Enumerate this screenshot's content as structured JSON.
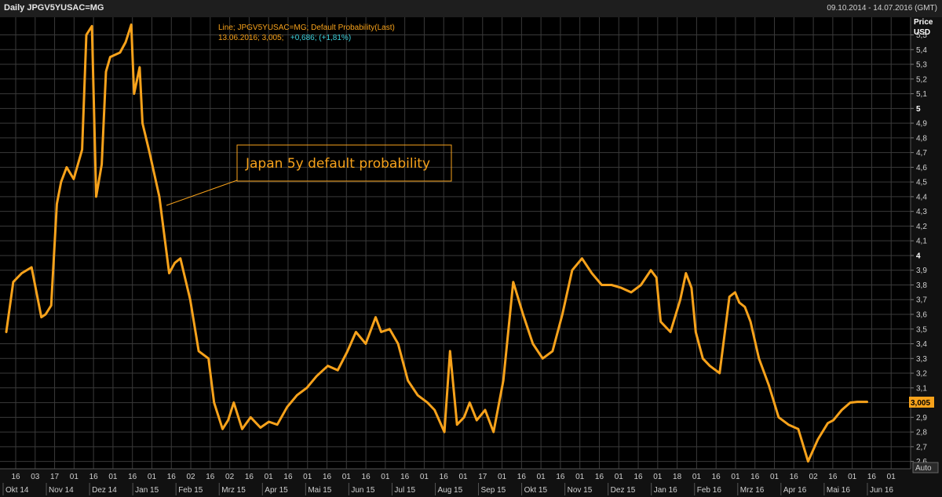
{
  "header": {
    "title": "Daily JPGV5YUSAC=MG",
    "date_range": "09.10.2014 - 14.07.2016 (GMT)"
  },
  "legend": {
    "line1": "Line; JPGV5YUSAC=MG; Default Probability(Last)",
    "line2_date_value": "13.06.2016; 3,005;",
    "line2_change": "+0,686; (+1,81%)"
  },
  "axis": {
    "y_title": "Price",
    "y_unit": "USD",
    "y_ticks": [
      "2,6",
      "2,7",
      "2,8",
      "2,9",
      "3",
      "3,1",
      "3,2",
      "3,3",
      "3,4",
      "3,5",
      "3,6",
      "3,7",
      "3,8",
      "3,9",
      "4",
      "4,1",
      "4,2",
      "4,3",
      "4,4",
      "4,5",
      "4,6",
      "4,7",
      "4,8",
      "4,9",
      "5",
      "5,1",
      "5,2",
      "5,3",
      "5,4",
      "5,5"
    ],
    "bold_ticks": [
      "3",
      "4",
      "5"
    ],
    "auto_label": "Auto",
    "x_day_ticks": [
      "16",
      "03",
      "17",
      "01",
      "16",
      "01",
      "16",
      "01",
      "16",
      "02",
      "16",
      "02",
      "16",
      "01",
      "16",
      "01",
      "16",
      "01",
      "16",
      "01",
      "16",
      "01",
      "16",
      "01",
      "17",
      "01",
      "16",
      "01",
      "16",
      "01",
      "16",
      "01",
      "16",
      "01",
      "18",
      "01",
      "16",
      "01",
      "16",
      "01",
      "16",
      "02",
      "16",
      "01",
      "16",
      "01"
    ],
    "months": [
      "Okt 14",
      "Nov 14",
      "Dez 14",
      "Jan 15",
      "Feb 15",
      "Mrz 15",
      "Apr 15",
      "Mai 15",
      "Jun 15",
      "Jul 15",
      "Aug 15",
      "Sep 15",
      "Okt 15",
      "Nov 15",
      "Dez 15",
      "Jan 16",
      "Feb 16",
      "Mrz 16",
      "Apr 16",
      "Mai 16",
      "Jun 16"
    ]
  },
  "annotation": {
    "text": "Japan 5y default probability"
  },
  "last_value_label": "3,005",
  "colors": {
    "line": "#f7a21b",
    "grid": "#3a3a3a",
    "background": "#000000",
    "change": "#3fd4e0"
  },
  "chart_data": {
    "type": "line",
    "title": "Daily JPGV5YUSAC=MG",
    "xlabel": "",
    "ylabel": "Price USD",
    "ylim": [
      2.55,
      5.62
    ],
    "grid": true,
    "x_range": [
      "09.10.2014",
      "14.07.2016"
    ],
    "series": [
      {
        "name": "Default Probability(Last)",
        "x": [
          "2014-10-09",
          "2014-10-14",
          "2014-10-20",
          "2014-10-27",
          "2014-11-03",
          "2014-11-06",
          "2014-11-10",
          "2014-11-14",
          "2014-11-17",
          "2014-11-21",
          "2014-11-26",
          "2014-12-02",
          "2014-12-05",
          "2014-12-09",
          "2014-12-12",
          "2014-12-16",
          "2014-12-19",
          "2014-12-22",
          "2014-12-29",
          "2015-01-02",
          "2015-01-06",
          "2015-01-08",
          "2015-01-12",
          "2015-01-14",
          "2015-01-19",
          "2015-01-26",
          "2015-02-02",
          "2015-02-06",
          "2015-02-10",
          "2015-02-17",
          "2015-02-23",
          "2015-03-02",
          "2015-03-06",
          "2015-03-12",
          "2015-03-16",
          "2015-03-20",
          "2015-03-26",
          "2015-04-01",
          "2015-04-08",
          "2015-04-14",
          "2015-04-20",
          "2015-04-27",
          "2015-05-04",
          "2015-05-11",
          "2015-05-18",
          "2015-05-26",
          "2015-06-02",
          "2015-06-09",
          "2015-06-15",
          "2015-06-22",
          "2015-06-29",
          "2015-07-03",
          "2015-07-09",
          "2015-07-15",
          "2015-07-22",
          "2015-07-29",
          "2015-08-05",
          "2015-08-10",
          "2015-08-17",
          "2015-08-21",
          "2015-08-26",
          "2015-08-31",
          "2015-09-04",
          "2015-09-09",
          "2015-09-15",
          "2015-09-21",
          "2015-09-28",
          "2015-10-05",
          "2015-10-12",
          "2015-10-19",
          "2015-10-26",
          "2015-11-02",
          "2015-11-09",
          "2015-11-16",
          "2015-11-23",
          "2015-11-30",
          "2015-12-07",
          "2015-12-14",
          "2015-12-21",
          "2015-12-28",
          "2016-01-04",
          "2016-01-11",
          "2016-01-15",
          "2016-01-18",
          "2016-01-25",
          "2016-02-01",
          "2016-02-05",
          "2016-02-09",
          "2016-02-12",
          "2016-02-17",
          "2016-02-22",
          "2016-02-29",
          "2016-03-07",
          "2016-03-11",
          "2016-03-14",
          "2016-03-18",
          "2016-03-22",
          "2016-03-28",
          "2016-04-04",
          "2016-04-11",
          "2016-04-18",
          "2016-04-25",
          "2016-05-02",
          "2016-05-09",
          "2016-05-16",
          "2016-05-20",
          "2016-05-26",
          "2016-06-01",
          "2016-06-06",
          "2016-06-10",
          "2016-06-13"
        ],
        "values": [
          3.48,
          3.82,
          3.88,
          3.92,
          3.58,
          3.6,
          3.66,
          4.35,
          4.5,
          4.6,
          4.52,
          4.72,
          5.5,
          5.56,
          4.4,
          4.62,
          5.25,
          5.35,
          5.38,
          5.45,
          5.57,
          5.1,
          5.28,
          4.9,
          4.7,
          4.4,
          3.88,
          3.95,
          3.98,
          3.7,
          3.35,
          3.3,
          3.0,
          2.82,
          2.88,
          3.0,
          2.82,
          2.9,
          2.83,
          2.87,
          2.85,
          2.97,
          3.05,
          3.1,
          3.18,
          3.25,
          3.22,
          3.35,
          3.48,
          3.4,
          3.58,
          3.48,
          3.5,
          3.4,
          3.15,
          3.05,
          3.0,
          2.95,
          2.8,
          3.35,
          2.85,
          2.9,
          3.0,
          2.88,
          2.95,
          2.8,
          3.15,
          3.82,
          3.6,
          3.4,
          3.3,
          3.35,
          3.6,
          3.9,
          3.98,
          3.88,
          3.8,
          3.8,
          3.78,
          3.75,
          3.8,
          3.9,
          3.85,
          3.55,
          3.48,
          3.7,
          3.88,
          3.78,
          3.48,
          3.3,
          3.25,
          3.2,
          3.72,
          3.75,
          3.68,
          3.65,
          3.55,
          3.3,
          3.12,
          2.9,
          2.85,
          2.82,
          2.6,
          2.75,
          2.86,
          2.88,
          2.95,
          3.0,
          3.005,
          3.005,
          3.005
        ]
      }
    ]
  }
}
